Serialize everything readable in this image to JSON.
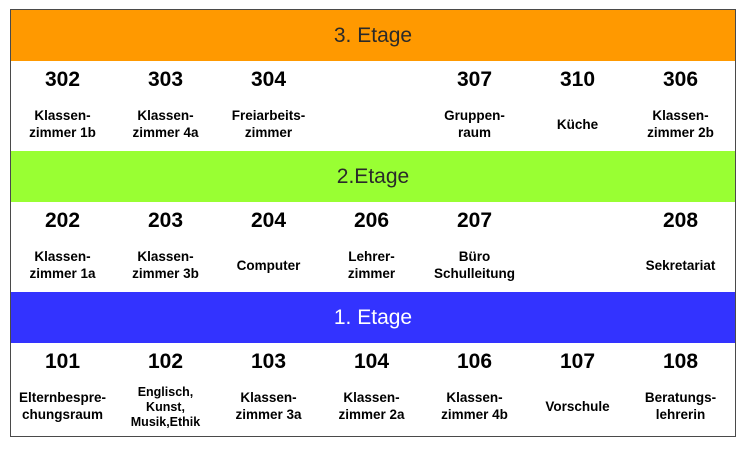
{
  "floors": [
    {
      "label": "3. Etage",
      "color": "#FF9900",
      "rooms": [
        {
          "number": "302",
          "name": "Klassen-\nzimmer 1b"
        },
        {
          "number": "303",
          "name": "Klassen-\nzimmer 4a"
        },
        {
          "number": "304",
          "name": "Freiarbeits-\nzimmer"
        },
        {
          "number": "",
          "name": ""
        },
        {
          "number": "307",
          "name": "Gruppen-\nraum"
        },
        {
          "number": "310",
          "name": "Küche"
        },
        {
          "number": "306",
          "name": "Klassen-\nzimmer 2b"
        }
      ]
    },
    {
      "label": "2.Etage",
      "color": "#99FF33",
      "rooms": [
        {
          "number": "202",
          "name": "Klassen-\nzimmer 1a"
        },
        {
          "number": "203",
          "name": "Klassen-\nzimmer 3b"
        },
        {
          "number": "204",
          "name": "Computer"
        },
        {
          "number": "206",
          "name": "Lehrer-\nzimmer"
        },
        {
          "number": "207",
          "name": "Büro\nSchulleitung"
        },
        {
          "number": "",
          "name": ""
        },
        {
          "number": "208",
          "name": "Sekretariat"
        }
      ]
    },
    {
      "label": "1. Etage",
      "color": "#3333FF",
      "rooms": [
        {
          "number": "101",
          "name": "Elternbespre-\nchungsraum"
        },
        {
          "number": "102",
          "name": "Englisch,\nKunst,\nMusik,Ethik"
        },
        {
          "number": "103",
          "name": "Klassen-\nzimmer 3a"
        },
        {
          "number": "104",
          "name": "Klassen-\nzimmer 2a"
        },
        {
          "number": "106",
          "name": "Klassen-\nzimmer 4b"
        },
        {
          "number": "107",
          "name": "Vorschule"
        },
        {
          "number": "108",
          "name": "Beratungs-\nlehrerin"
        }
      ]
    }
  ]
}
